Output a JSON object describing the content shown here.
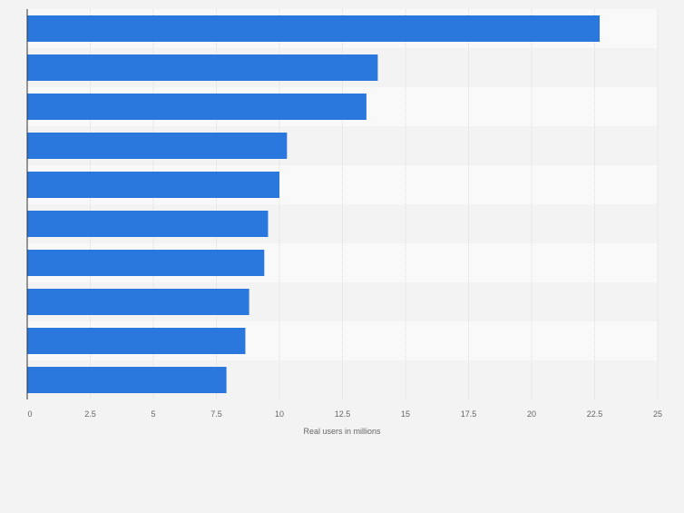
{
  "colors": {
    "bar": "#2a77dd",
    "band_light": "#f9f9f9",
    "band_dark": "#f3f3f3",
    "grid": "#dcdcdc",
    "axis": "#333333",
    "tick_text": "#666666"
  },
  "chart_data": {
    "type": "bar",
    "orientation": "horizontal",
    "categories": [
      "",
      "",
      "",
      "",
      "",
      "",
      "",
      "",
      "",
      ""
    ],
    "values": [
      22.7,
      13.9,
      13.45,
      10.3,
      10.0,
      9.55,
      9.4,
      8.8,
      8.65,
      7.9
    ],
    "xlim": [
      0,
      25
    ],
    "xticks": [
      0,
      2.5,
      5,
      7.5,
      10,
      12.5,
      15,
      17.5,
      20,
      22.5,
      25
    ],
    "xtick_labels": [
      "0",
      "2.5",
      "5",
      "7.5",
      "10",
      "12.5",
      "15",
      "17.5",
      "20",
      "22.5",
      "25"
    ],
    "xlabel": "Real users in millions",
    "ylabel": "",
    "title": "",
    "grid": true,
    "legend": "none"
  }
}
